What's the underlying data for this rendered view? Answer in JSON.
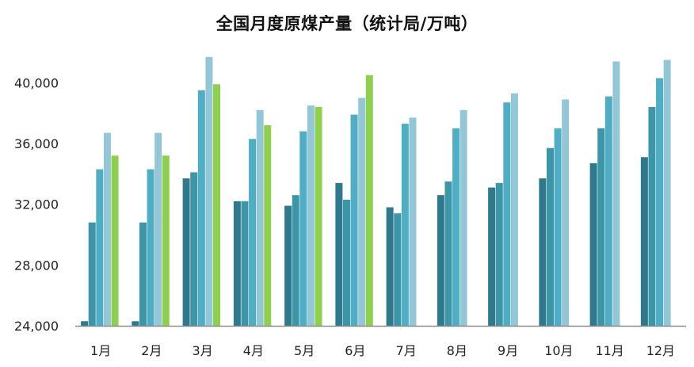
{
  "chart_data": {
    "type": "bar",
    "title": "全国月度原煤产量（统计局/万吨）",
    "xlabel": "",
    "ylabel": "",
    "categories": [
      "1月",
      "2月",
      "3月",
      "4月",
      "5月",
      "6月",
      "7月",
      "8月",
      "9月",
      "10月",
      "11月",
      "12月"
    ],
    "ylim": [
      24000,
      42000
    ],
    "yticks": [
      24000,
      28000,
      32000,
      36000,
      40000
    ],
    "ytick_labels": [
      "24,000",
      "28,000",
      "32,000",
      "36,000",
      "40,000"
    ],
    "grid": false,
    "legend": "none",
    "series": [
      {
        "color": "#2e7a8c",
        "values": [
          24300,
          24300,
          33700,
          32200,
          31900,
          33400,
          31800,
          32600,
          33100,
          33700,
          34700,
          35100
        ]
      },
      {
        "color": "#3d95a8",
        "values": [
          30800,
          30800,
          34100,
          32200,
          32600,
          32300,
          31400,
          33500,
          33400,
          35700,
          37000,
          38400
        ]
      },
      {
        "color": "#4fadc4",
        "values": [
          34300,
          34300,
          39500,
          36300,
          36800,
          37900,
          37300,
          37000,
          38700,
          37000,
          39100,
          40300
        ]
      },
      {
        "color": "#93c7d8",
        "values": [
          36700,
          36700,
          41700,
          38200,
          38500,
          39000,
          37700,
          38200,
          39300,
          38900,
          41400,
          41500
        ]
      },
      {
        "color": "#8ecf4d",
        "values": [
          35200,
          35200,
          39900,
          37200,
          38400,
          40500,
          null,
          null,
          null,
          null,
          null,
          null
        ]
      }
    ]
  }
}
